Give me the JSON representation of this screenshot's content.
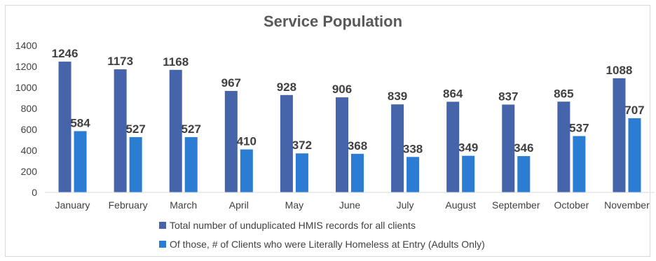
{
  "chart_data": {
    "type": "bar",
    "title": "Service Population",
    "categories": [
      "January",
      "February",
      "March",
      "April",
      "May",
      "June",
      "July",
      "August",
      "September",
      "October",
      "November"
    ],
    "series": [
      {
        "name": "Total number of unduplicated HMIS records for all clients",
        "color": "#4664AA",
        "values": [
          1246,
          1173,
          1168,
          967,
          928,
          906,
          839,
          864,
          837,
          865,
          1088
        ]
      },
      {
        "name": "Of those, # of Clients who were Literally Homeless at Entry (Adults Only)",
        "color": "#2B7CD3",
        "values": [
          584,
          527,
          527,
          410,
          372,
          368,
          338,
          349,
          346,
          537,
          707
        ]
      }
    ],
    "ylim": [
      0,
      1400
    ],
    "yticks": [
      0,
      200,
      400,
      600,
      800,
      1000,
      1200,
      1400
    ],
    "grid": false,
    "legend_position": "bottom"
  }
}
